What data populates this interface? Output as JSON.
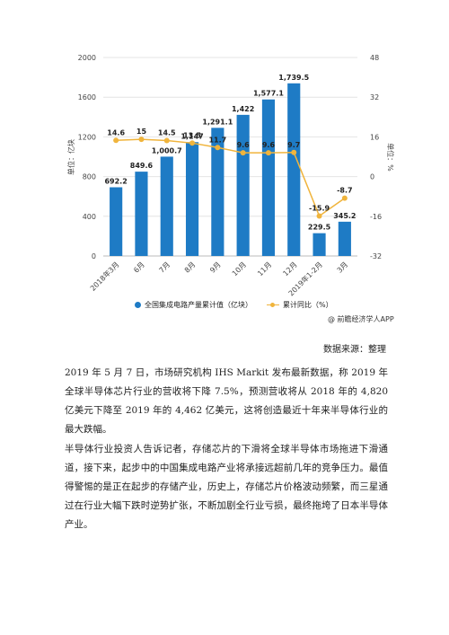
{
  "chart_data": {
    "type": "bar+line",
    "categories": [
      "2018年3月",
      "6月",
      "7月",
      "8月",
      "9月",
      "10月",
      "11月",
      "12月",
      "2019年1-2月",
      "3月"
    ],
    "series": [
      {
        "name": "全国集成电路产量累计值（亿块）",
        "type": "bar",
        "axis": "left",
        "values": [
          692.2,
          849.6,
          1000.7,
          1147,
          1291.1,
          1422,
          1577.1,
          1739.5,
          229.5,
          345.2
        ],
        "labels": [
          "692.2",
          "849.6",
          "1,000.7",
          "1,147",
          "1,291.1",
          "1,422",
          "1,577.1",
          "1,739.5",
          "229.5",
          "345.2"
        ],
        "color": "#1e7bc5"
      },
      {
        "name": "累计同比（%）",
        "type": "line",
        "axis": "right",
        "values": [
          14.6,
          15,
          14.5,
          13.5,
          11.7,
          9.6,
          9.6,
          9.7,
          -15.9,
          -8.7
        ],
        "labels": [
          "14.6",
          "15",
          "14.5",
          "13.5",
          "11.7",
          "9.6",
          "9.6",
          "9.7",
          "-15.9",
          "-8.7"
        ],
        "color": "#f0b43c"
      }
    ],
    "ylabel_left": "单位：亿块",
    "ylabel_right": "单位：%",
    "ylim_left": [
      0,
      2000
    ],
    "yticks_left": [
      "0",
      "400",
      "800",
      "1200",
      "1600",
      "2000"
    ],
    "ylim_right": [
      -32,
      48
    ],
    "yticks_right": [
      "-32",
      "-16",
      "0",
      "16",
      "32",
      "48"
    ],
    "legend_position": "bottom",
    "grid": true
  },
  "watermark": "@ 前瞻经济学人APP",
  "source": "数据来源：整理",
  "paragraphs": [
    "2019 年 5 月 7 日，市场研究机构 IHS Markit 发布最新数据，称 2019 年全球半导体芯片行业的营收将下降 7.5%，预测营收将从 2018 年的 4,820 亿美元下降至 2019 年的 4,462 亿美元，这将创造最近十年来半导体行业的最大跌幅。",
    "半导体行业投资人告诉记者，存储芯片的下滑将全球半导体市场拖进下滑通道，接下来，起步中的中国集成电路产业将承接远超前几年的竞争压力。最值得警惕的是正在起步的存储产业，历史上，存储芯片价格波动频繁，而三星通过在行业大幅下跌时逆势扩张，不断加剧全行业亏损，最终拖垮了日本半导体产业。"
  ]
}
